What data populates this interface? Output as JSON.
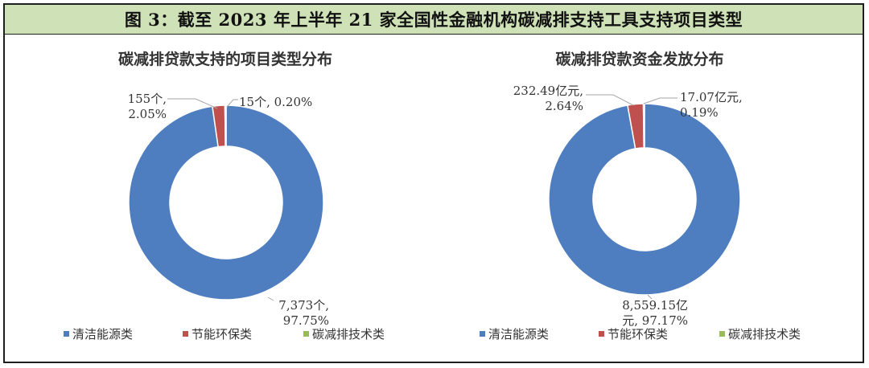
{
  "figure_title": "图 3：截至 2023 年上半年 21 家全国性金融机构碳减排支持工具支持项目类型",
  "colors": {
    "clean": "#4e7ec0",
    "save": "#c0504d",
    "tech": "#9bbb59",
    "title_bg": "#cfe1b7"
  },
  "chart_data": [
    {
      "type": "pie",
      "title": "碳减排贷款支持的项目类型分布",
      "categories": [
        "清洁能源类",
        "节能环保类",
        "碳减排技术类"
      ],
      "values": [
        7373,
        155,
        15
      ],
      "percents": [
        97.75,
        2.05,
        0.2
      ],
      "unit": "个",
      "labels": [
        [
          "7,373个,",
          "97.75%"
        ],
        [
          "155个,",
          "2.05%"
        ],
        [
          "15个, 0.20%"
        ]
      ],
      "legend": [
        "清洁能源类",
        "节能环保类",
        "碳减排技术类"
      ],
      "legend_position": "bottom"
    },
    {
      "type": "pie",
      "title": "碳减排贷款资金发放分布",
      "categories": [
        "清洁能源类",
        "节能环保类",
        "碳减排技术类"
      ],
      "values": [
        8559.15,
        232.49,
        17.07
      ],
      "percents": [
        97.17,
        2.64,
        0.19
      ],
      "unit": "亿元",
      "labels": [
        [
          "8,559.15亿",
          "元, 97.17%"
        ],
        [
          "232.49亿元,",
          "2.64%"
        ],
        [
          "17.07亿元,",
          "0.19%"
        ]
      ],
      "legend": [
        "清洁能源类",
        "节能环保类",
        "碳减排技术类"
      ],
      "legend_position": "bottom"
    }
  ]
}
